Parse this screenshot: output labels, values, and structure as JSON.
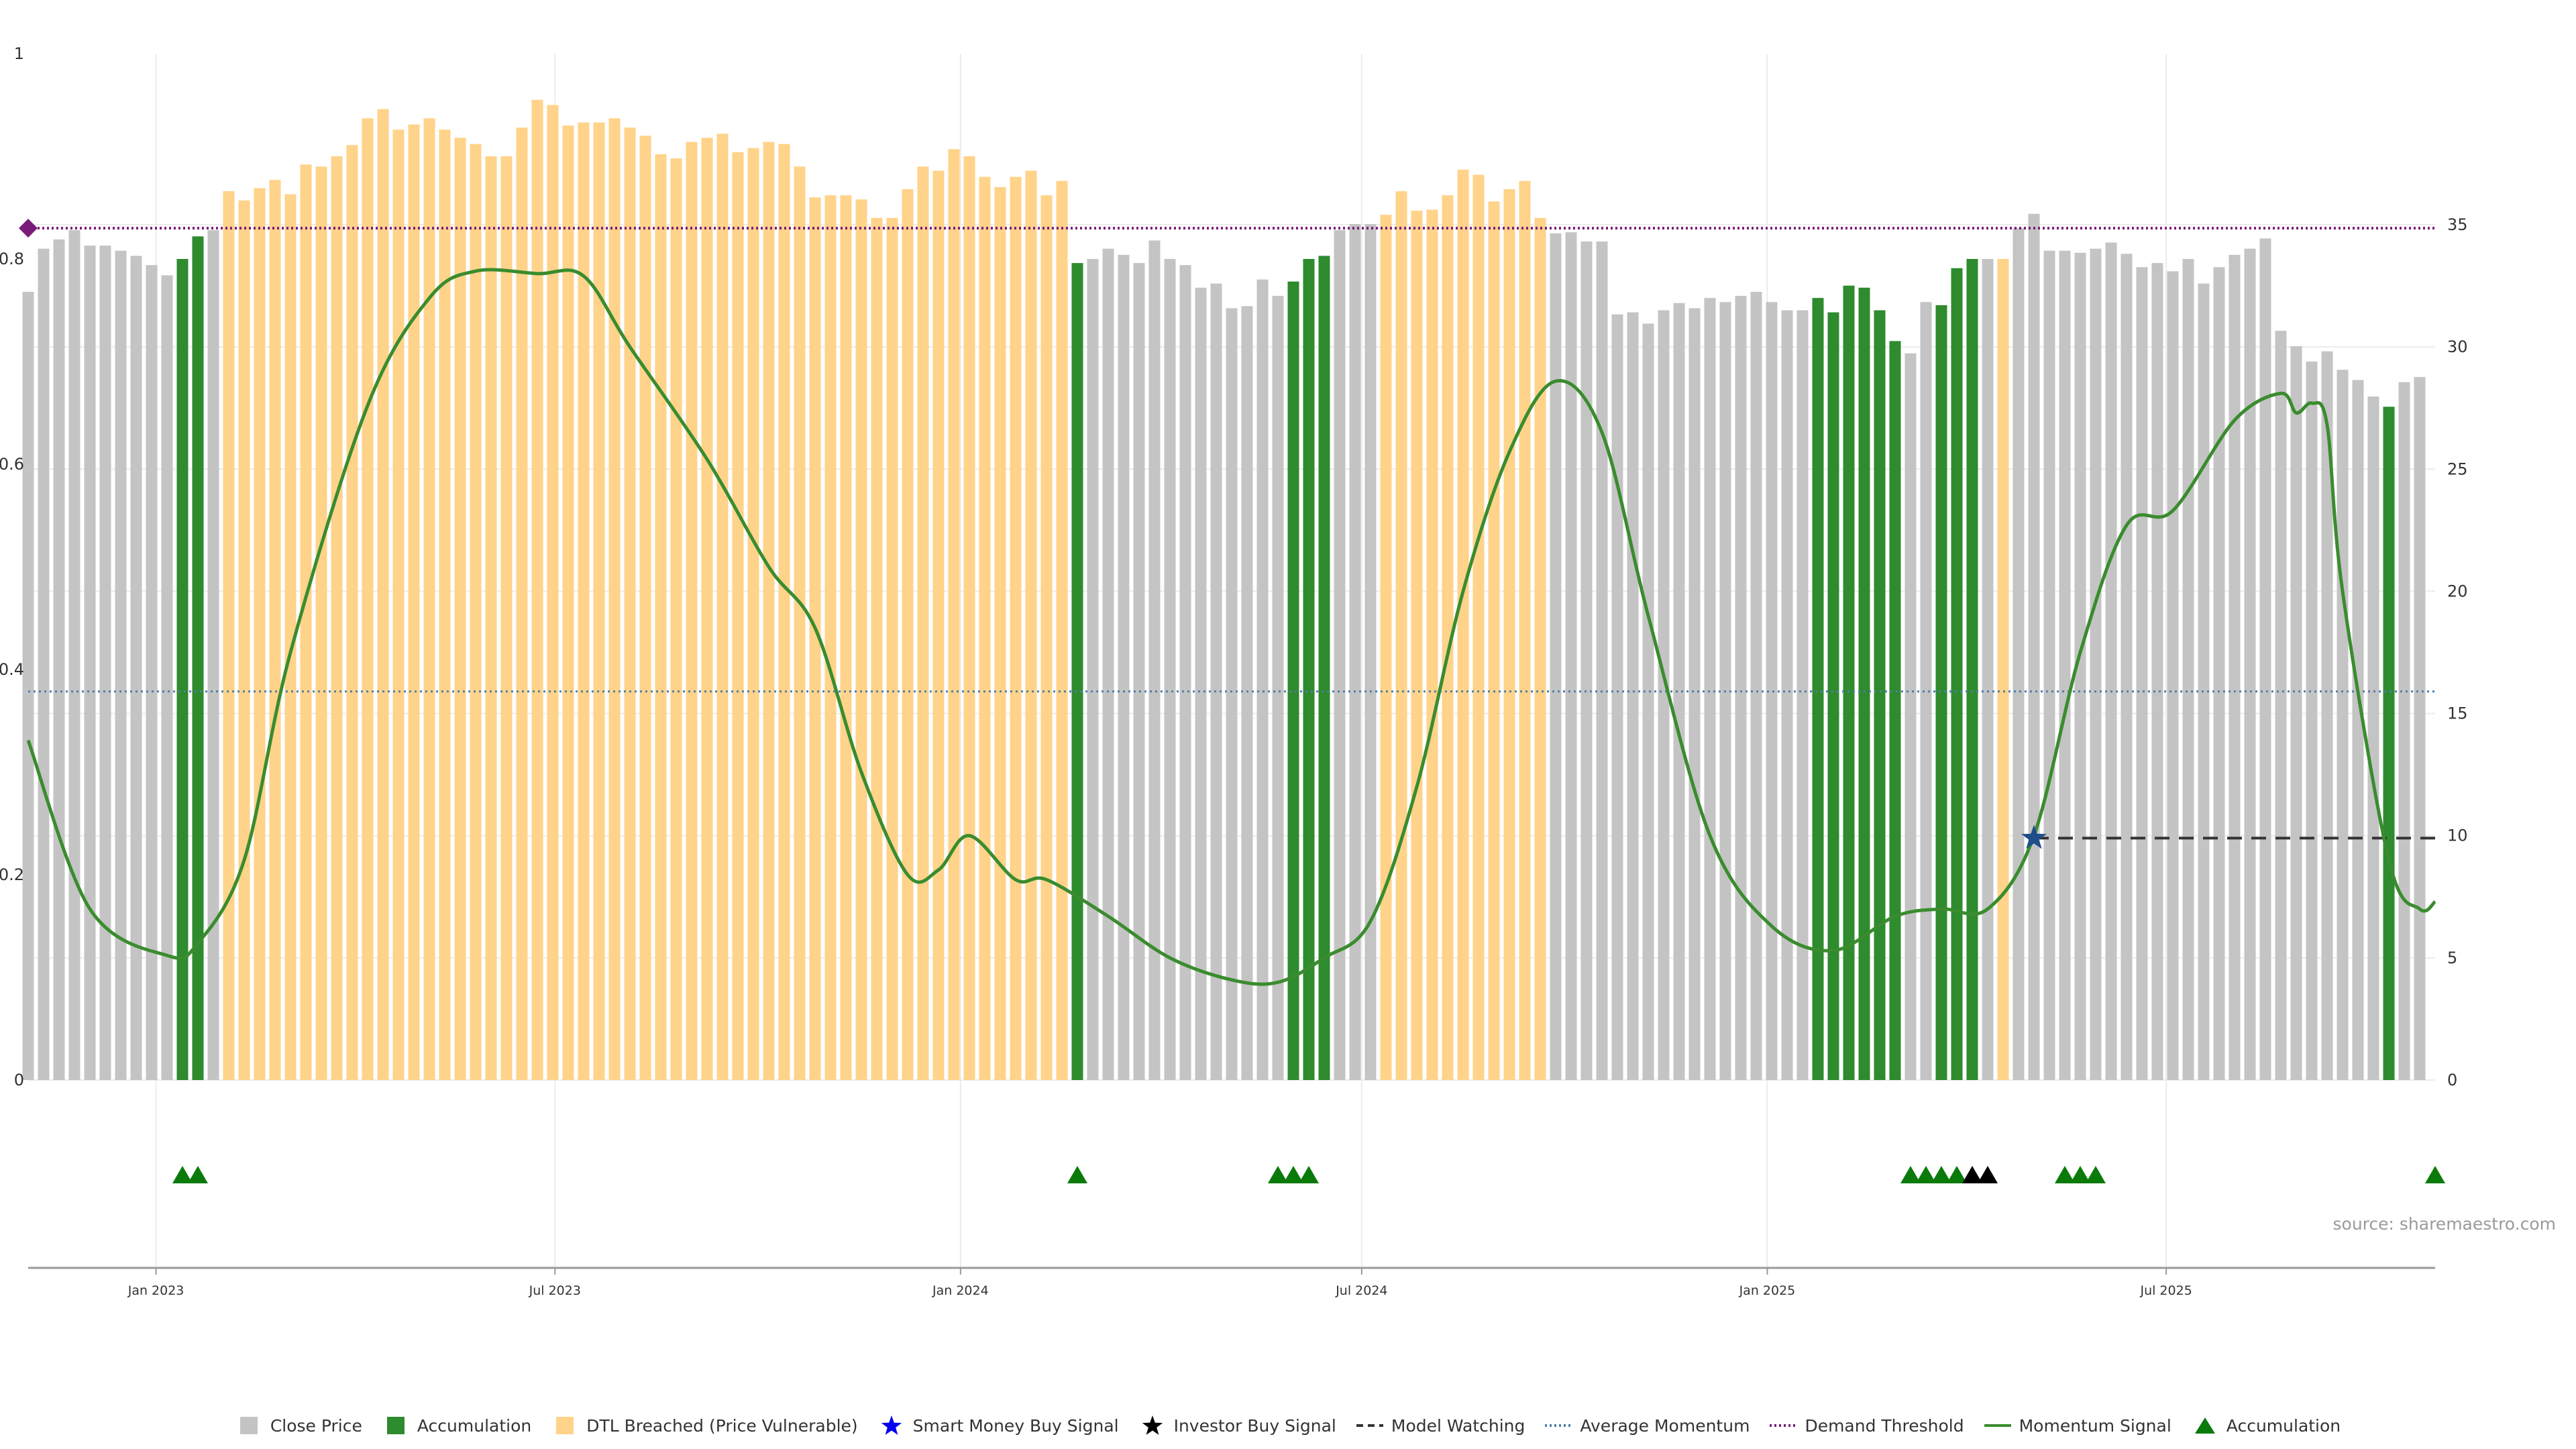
{
  "source_note": "source: sharemaestro.com",
  "colors": {
    "close_price": "#c4c4c4",
    "accumulation": "#2e8b2e",
    "dtl_breached": "#ffd38a",
    "momentum": "#3a8c2e",
    "average_momentum": "#4f7fa6",
    "demand_threshold": "#7a1a7a",
    "model_watching": "#333333",
    "smart_money": "#0000ee",
    "investor": "#000000",
    "marker_green": "#0a7a0a"
  },
  "chart_data": {
    "type": "bar",
    "left_axis": {
      "ylim": [
        0,
        1
      ],
      "ticks": [
        0,
        0.2,
        0.4,
        0.6,
        0.8,
        1
      ],
      "tick_labels": [
        "0",
        "0.2",
        "0.4",
        "0.6",
        "0.8",
        "1"
      ]
    },
    "right_axis": {
      "ylim": [
        0,
        42
      ],
      "ticks": [
        0,
        5,
        10,
        15,
        20,
        25,
        30,
        35
      ],
      "tick_labels": [
        "0",
        "5",
        "10",
        "15",
        "20",
        "25",
        "30",
        "35"
      ]
    },
    "x_axis": {
      "range": [
        "2022-11-04",
        "2025-10-31"
      ],
      "ticks": [
        "2023-01-01",
        "2023-07-01",
        "2024-01-01",
        "2024-07-01",
        "2025-01-01",
        "2025-07-01"
      ],
      "tick_labels": [
        "Jan 2023",
        "Jul 2023",
        "Jan 2024",
        "Jul 2024",
        "Jan 2025",
        "Jul 2025"
      ]
    },
    "grid": true,
    "legend_position": "bottom",
    "legend": [
      "Close Price",
      "Accumulation",
      "DTL Breached (Price Vulnerable)",
      "Smart Money Buy Signal",
      "Investor Buy Signal",
      "Model Watching",
      "Average Momentum",
      "Demand Threshold",
      "Momentum Signal",
      "Accumulation"
    ],
    "bars": {
      "start_date": "2022-11-04",
      "interval_days": 7,
      "values": [
        0.768,
        0.81,
        0.819,
        0.828,
        0.813,
        0.813,
        0.808,
        0.803,
        0.794,
        0.784,
        0.8,
        0.822,
        0.828,
        0.866,
        0.857,
        0.869,
        0.877,
        0.863,
        0.892,
        0.89,
        0.9,
        0.911,
        0.937,
        0.946,
        0.926,
        0.931,
        0.937,
        0.926,
        0.918,
        0.912,
        0.9,
        0.9,
        0.928,
        0.955,
        0.95,
        0.93,
        0.933,
        0.933,
        0.937,
        0.928,
        0.92,
        0.902,
        0.898,
        0.914,
        0.918,
        0.922,
        0.904,
        0.908,
        0.914,
        0.912,
        0.89,
        0.86,
        0.862,
        0.862,
        0.858,
        0.84,
        0.84,
        0.868,
        0.89,
        0.886,
        0.907,
        0.9,
        0.88,
        0.87,
        0.88,
        0.886,
        0.862,
        0.876,
        0.796,
        0.8,
        0.81,
        0.804,
        0.796,
        0.818,
        0.8,
        0.794,
        0.772,
        0.776,
        0.752,
        0.754,
        0.78,
        0.764,
        0.778,
        0.8,
        0.803,
        0.828,
        0.834,
        0.834,
        0.843,
        0.866,
        0.847,
        0.848,
        0.862,
        0.887,
        0.882,
        0.856,
        0.868,
        0.876,
        0.84,
        0.825,
        0.826,
        0.817,
        0.817,
        0.746,
        0.748,
        0.737,
        0.75,
        0.757,
        0.752,
        0.762,
        0.758,
        0.764,
        0.768,
        0.758,
        0.75,
        0.75,
        0.762,
        0.748,
        0.774,
        0.772,
        0.75,
        0.72,
        0.708,
        0.758,
        0.755,
        0.791,
        0.8,
        0.8,
        0.8,
        0.83,
        0.844,
        0.808,
        0.808,
        0.806,
        0.81,
        0.816,
        0.805,
        0.792,
        0.796,
        0.788,
        0.8,
        0.776,
        0.792,
        0.804,
        0.81,
        0.82,
        0.73,
        0.715,
        0.7,
        0.71,
        0.692,
        0.682,
        0.666,
        0.656,
        0.68,
        0.685
      ],
      "states": [
        "c",
        "c",
        "c",
        "c",
        "c",
        "c",
        "c",
        "c",
        "c",
        "c",
        "a",
        "a",
        "c",
        "d",
        "d",
        "d",
        "d",
        "d",
        "d",
        "d",
        "d",
        "d",
        "d",
        "d",
        "d",
        "d",
        "d",
        "d",
        "d",
        "d",
        "d",
        "d",
        "d",
        "d",
        "d",
        "d",
        "d",
        "d",
        "d",
        "d",
        "d",
        "d",
        "d",
        "d",
        "d",
        "d",
        "d",
        "d",
        "d",
        "d",
        "d",
        "d",
        "d",
        "d",
        "d",
        "d",
        "d",
        "d",
        "d",
        "d",
        "d",
        "d",
        "d",
        "d",
        "d",
        "d",
        "d",
        "d",
        "a",
        "c",
        "c",
        "c",
        "c",
        "c",
        "c",
        "c",
        "c",
        "c",
        "c",
        "c",
        "c",
        "c",
        "a",
        "a",
        "a",
        "c",
        "c",
        "c",
        "d",
        "d",
        "d",
        "d",
        "d",
        "d",
        "d",
        "d",
        "d",
        "d",
        "d",
        "c",
        "c",
        "c",
        "c",
        "c",
        "c",
        "c",
        "c",
        "c",
        "c",
        "c",
        "c",
        "c",
        "c",
        "c",
        "c",
        "c",
        "a",
        "a",
        "a",
        "a",
        "a",
        "a",
        "c",
        "c",
        "a",
        "a",
        "a",
        "c",
        "d",
        "c",
        "c",
        "c",
        "c",
        "c",
        "c",
        "c",
        "c",
        "c",
        "c",
        "c",
        "c",
        "c",
        "c",
        "c",
        "c",
        "c",
        "c",
        "c",
        "c",
        "c",
        "c",
        "c",
        "c",
        "a"
      ]
    },
    "momentum_signal": [
      [
        "2022-11-04",
        13.9
      ],
      [
        "2022-12-02",
        7.0
      ],
      [
        "2023-01-06",
        5.1
      ],
      [
        "2023-01-20",
        5.6
      ],
      [
        "2023-02-10",
        9.0
      ],
      [
        "2023-03-03",
        17.5
      ],
      [
        "2023-04-07",
        27.6
      ],
      [
        "2023-05-05",
        32.0
      ],
      [
        "2023-05-26",
        33.1
      ],
      [
        "2023-06-23",
        33.0
      ],
      [
        "2023-07-14",
        32.9
      ],
      [
        "2023-08-04",
        30.0
      ],
      [
        "2023-09-08",
        25.4
      ],
      [
        "2023-10-06",
        21.0
      ],
      [
        "2023-10-27",
        18.5
      ],
      [
        "2023-11-17",
        12.6
      ],
      [
        "2023-12-08",
        8.4
      ],
      [
        "2023-12-22",
        8.6
      ],
      [
        "2024-01-05",
        10.0
      ],
      [
        "2024-01-26",
        8.2
      ],
      [
        "2024-02-09",
        8.2
      ],
      [
        "2024-03-08",
        6.7
      ],
      [
        "2024-04-05",
        5.0
      ],
      [
        "2024-05-03",
        4.1
      ],
      [
        "2024-05-24",
        4.0
      ],
      [
        "2024-06-14",
        5.0
      ],
      [
        "2024-07-05",
        6.5
      ],
      [
        "2024-07-26",
        12.0
      ],
      [
        "2024-08-16",
        20.0
      ],
      [
        "2024-09-06",
        25.7
      ],
      [
        "2024-09-27",
        28.6
      ],
      [
        "2024-10-18",
        26.5
      ],
      [
        "2024-11-08",
        19.0
      ],
      [
        "2024-12-06",
        10.0
      ],
      [
        "2025-01-03",
        6.3
      ],
      [
        "2025-01-31",
        5.3
      ],
      [
        "2025-02-28",
        6.7
      ],
      [
        "2025-03-21",
        7.0
      ],
      [
        "2025-04-11",
        7.0
      ],
      [
        "2025-05-02",
        10.0
      ],
      [
        "2025-05-23",
        17.5
      ],
      [
        "2025-06-13",
        22.7
      ],
      [
        "2025-07-04",
        23.3
      ],
      [
        "2025-08-01",
        27.0
      ],
      [
        "2025-08-22",
        28.1
      ],
      [
        "2025-08-29",
        27.3
      ],
      [
        "2025-09-05",
        27.7
      ],
      [
        "2025-09-12",
        26.8
      ],
      [
        "2025-09-19",
        20.0
      ],
      [
        "2025-10-10",
        9.0
      ],
      [
        "2025-10-24",
        7.0
      ],
      [
        "2025-10-31",
        7.3
      ]
    ],
    "average_momentum": 15.9,
    "demand_threshold": 0.83,
    "demand_threshold_marker_date": "2022-11-04",
    "model_watching": {
      "from": "2025-05-02",
      "to": "2025-10-31",
      "value": 9.9
    },
    "smart_money_buy_signals": [
      [
        "2025-05-02",
        9.9
      ]
    ],
    "accumulation_markers": [
      "2023-01-13",
      "2023-01-20",
      "2024-02-23",
      "2024-05-24",
      "2024-05-31",
      "2024-06-07",
      "2025-03-07",
      "2025-03-14",
      "2025-03-21",
      "2025-03-28",
      "2025-05-16",
      "2025-05-23",
      "2025-05-30",
      "2025-10-31"
    ],
    "investor_buy_markers": [
      "2025-04-04",
      "2025-04-11"
    ]
  },
  "legend": [
    {
      "label": "Close Price",
      "icon": "square-icon",
      "color_key": "close_price"
    },
    {
      "label": "Accumulation",
      "icon": "square-icon",
      "color_key": "accumulation"
    },
    {
      "label": "DTL Breached (Price Vulnerable)",
      "icon": "square-icon",
      "color_key": "dtl_breached"
    },
    {
      "label": "Smart Money Buy Signal",
      "icon": "star-icon",
      "color_key": "smart_money"
    },
    {
      "label": "Investor Buy Signal",
      "icon": "star-icon",
      "color_key": "investor"
    },
    {
      "label": "Model Watching",
      "icon": "dashed-line-icon",
      "color_key": "model_watching"
    },
    {
      "label": "Average Momentum",
      "icon": "dotted-line-icon",
      "color_key": "average_momentum"
    },
    {
      "label": "Demand Threshold",
      "icon": "dotted-line-icon",
      "color_key": "demand_threshold"
    },
    {
      "label": "Momentum Signal",
      "icon": "solid-line-icon",
      "color_key": "momentum"
    },
    {
      "label": "Accumulation",
      "icon": "triangle-icon",
      "color_key": "marker_green"
    }
  ]
}
